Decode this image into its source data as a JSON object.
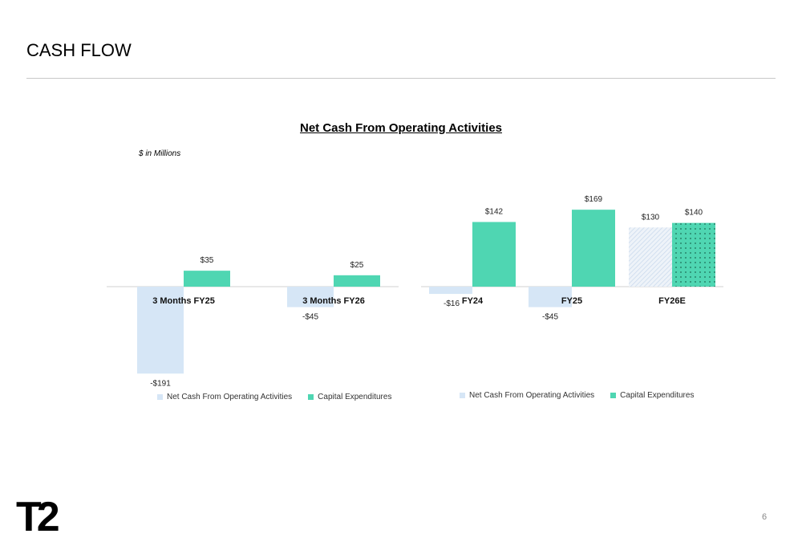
{
  "page": {
    "title": "CASH FLOW",
    "page_number": "6",
    "logo_text": "T2"
  },
  "chart_title": "Net Cash From Operating Activities",
  "units_note": "$ in Millions",
  "colors": {
    "operating": "#d6e6f6",
    "capex": "#4fd6b2",
    "axis": "#d0d0d0"
  },
  "chart_data": [
    {
      "type": "bar",
      "categories": [
        "3 Months FY25",
        "3 Months FY26"
      ],
      "series": [
        {
          "name": "Net Cash From Operating Activities",
          "values": [
            -191,
            -45
          ],
          "labels": [
            "-$191",
            "-$45"
          ]
        },
        {
          "name": "Capital Expenditures",
          "values": [
            35,
            25
          ],
          "labels": [
            "$35",
            "$25"
          ]
        }
      ],
      "legend": [
        "Net Cash From Operating Activities",
        "Capital Expenditures"
      ],
      "legend_position": "bottom"
    },
    {
      "type": "bar",
      "categories": [
        "FY24",
        "FY25",
        "FY26E"
      ],
      "series": [
        {
          "name": "Net Cash From Operating Activities",
          "values": [
            -16,
            -45,
            130
          ],
          "labels": [
            "-$16",
            "-$45",
            "$130"
          ],
          "estimate_pattern": [
            false,
            false,
            true
          ]
        },
        {
          "name": "Capital Expenditures",
          "values": [
            142,
            169,
            140
          ],
          "labels": [
            "$142",
            "$169",
            "$140"
          ],
          "estimate_pattern": [
            false,
            false,
            true
          ]
        }
      ],
      "legend": [
        "Net Cash From Operating Activities",
        "Capital Expenditures"
      ],
      "legend_position": "bottom"
    }
  ]
}
